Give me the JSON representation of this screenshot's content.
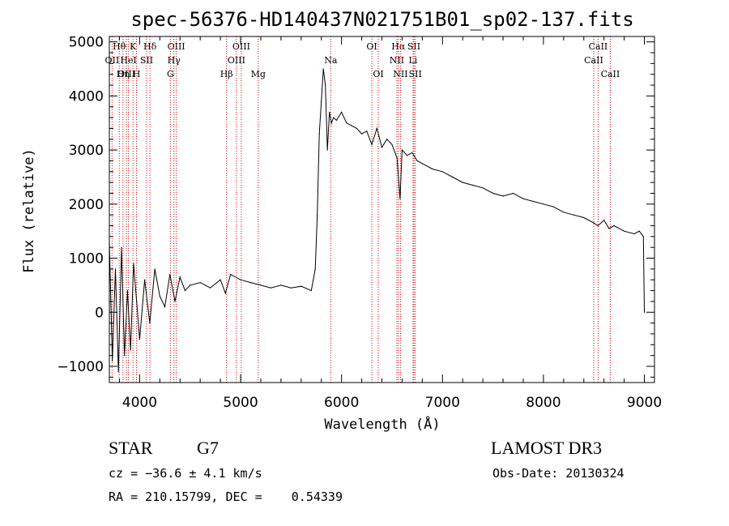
{
  "chart_data": {
    "type": "line",
    "title": "spec-56376-HD140437N021751B01_sp02-137.fits",
    "xlabel": "Wavelength (Å)",
    "ylabel": "Flux (relative)",
    "xlim": [
      3700,
      9100
    ],
    "ylim": [
      -1300,
      5100
    ],
    "x_ticks": [
      4000,
      5000,
      6000,
      7000,
      8000,
      9000
    ],
    "y_ticks": [
      -1000,
      0,
      1000,
      2000,
      3000,
      4000,
      5000
    ],
    "x_tick_labels": [
      "4000",
      "5000",
      "6000",
      "7000",
      "8000",
      "9000"
    ],
    "y_tick_labels": [
      "−1000",
      "0",
      "1000",
      "2000",
      "3000",
      "4000",
      "5000"
    ],
    "series": [
      {
        "color": "#000000",
        "x": [
          3700,
          3730,
          3760,
          3790,
          3820,
          3850,
          3880,
          3910,
          3940,
          3970,
          4000,
          4050,
          4100,
          4150,
          4200,
          4250,
          4300,
          4350,
          4400,
          4450,
          4500,
          4600,
          4700,
          4800,
          4850,
          4900,
          5000,
          5100,
          5200,
          5300,
          5400,
          5500,
          5600,
          5700,
          5740,
          5760,
          5780,
          5800,
          5820,
          5840,
          5860,
          5880,
          5900,
          5920,
          5950,
          6000,
          6050,
          6100,
          6150,
          6200,
          6250,
          6300,
          6350,
          6400,
          6450,
          6500,
          6550,
          6580,
          6600,
          6650,
          6700,
          6750,
          6800,
          6900,
          7000,
          7100,
          7200,
          7300,
          7400,
          7500,
          7600,
          7700,
          7800,
          7900,
          8000,
          8100,
          8200,
          8300,
          8400,
          8500,
          8540,
          8600,
          8650,
          8700,
          8800,
          8900,
          8950,
          8990,
          9000
        ],
        "y": [
          1300,
          -900,
          800,
          -1100,
          1200,
          -800,
          400,
          -700,
          900,
          200,
          -500,
          600,
          -200,
          800,
          300,
          100,
          700,
          200,
          650,
          400,
          500,
          550,
          450,
          600,
          350,
          700,
          600,
          550,
          500,
          450,
          500,
          450,
          480,
          400,
          800,
          1800,
          3300,
          3900,
          4500,
          4200,
          3000,
          3700,
          3500,
          3600,
          3550,
          3700,
          3500,
          3450,
          3400,
          3300,
          3350,
          3100,
          3400,
          3050,
          3200,
          3100,
          2850,
          2100,
          3000,
          2900,
          2950,
          2800,
          2750,
          2650,
          2600,
          2500,
          2400,
          2350,
          2300,
          2200,
          2150,
          2200,
          2100,
          2050,
          2000,
          1950,
          1850,
          1800,
          1750,
          1650,
          1600,
          1700,
          1550,
          1600,
          1500,
          1450,
          1500,
          1400,
          0
        ]
      }
    ],
    "spectral_lines": [
      {
        "label": "Hθ",
        "wl": 3798,
        "row": 1
      },
      {
        "label": "OII",
        "wl": 3727,
        "row": 2
      },
      {
        "label": "OIII",
        "wl": 3869,
        "row": 3
      },
      {
        "label": "K",
        "wl": 3934,
        "row": 1
      },
      {
        "label": "HeI",
        "wl": 3889,
        "row": 2
      },
      {
        "label": "Hη",
        "wl": 3835,
        "row": 3
      },
      {
        "label": "SII",
        "wl": 4069,
        "row": 2
      },
      {
        "label": "H",
        "wl": 3969,
        "row": 3
      },
      {
        "label": "Hδ",
        "wl": 4102,
        "row": 1
      },
      {
        "label": "OIII",
        "wl": 4363,
        "row": 1
      },
      {
        "label": "Hγ",
        "wl": 4340,
        "row": 2
      },
      {
        "label": "G",
        "wl": 4305,
        "row": 3
      },
      {
        "label": "OIII",
        "wl": 5007,
        "row": 1
      },
      {
        "label": "OIII",
        "wl": 4959,
        "row": 2
      },
      {
        "label": "Hβ",
        "wl": 4861,
        "row": 3
      },
      {
        "label": "Mg",
        "wl": 5175,
        "row": 3
      },
      {
        "label": "Na",
        "wl": 5893,
        "row": 2
      },
      {
        "label": "OI",
        "wl": 6300,
        "row": 1
      },
      {
        "label": "OI",
        "wl": 6364,
        "row": 3
      },
      {
        "label": "Hα",
        "wl": 6563,
        "row": 1
      },
      {
        "label": "SII",
        "wl": 6717,
        "row": 1
      },
      {
        "label": "NII",
        "wl": 6548,
        "row": 2
      },
      {
        "label": "Li",
        "wl": 6708,
        "row": 2
      },
      {
        "label": "NII",
        "wl": 6584,
        "row": 3
      },
      {
        "label": "SII",
        "wl": 6731,
        "row": 3
      },
      {
        "label": "CaII",
        "wl": 8542,
        "row": 1
      },
      {
        "label": "CaII",
        "wl": 8498,
        "row": 2
      },
      {
        "label": "CaII",
        "wl": 8662,
        "row": 3
      }
    ],
    "grid": false,
    "line_marker_color": "#d40000"
  },
  "info": {
    "object_type": "STAR",
    "subclass": "G7",
    "redshift": "cz = −36.6 ± 4.1 km/s",
    "coords": "RA = 210.15799, DEC =    0.54339",
    "survey": "LAMOST DR3",
    "obs_date": "Obs-Date: 20130324"
  }
}
